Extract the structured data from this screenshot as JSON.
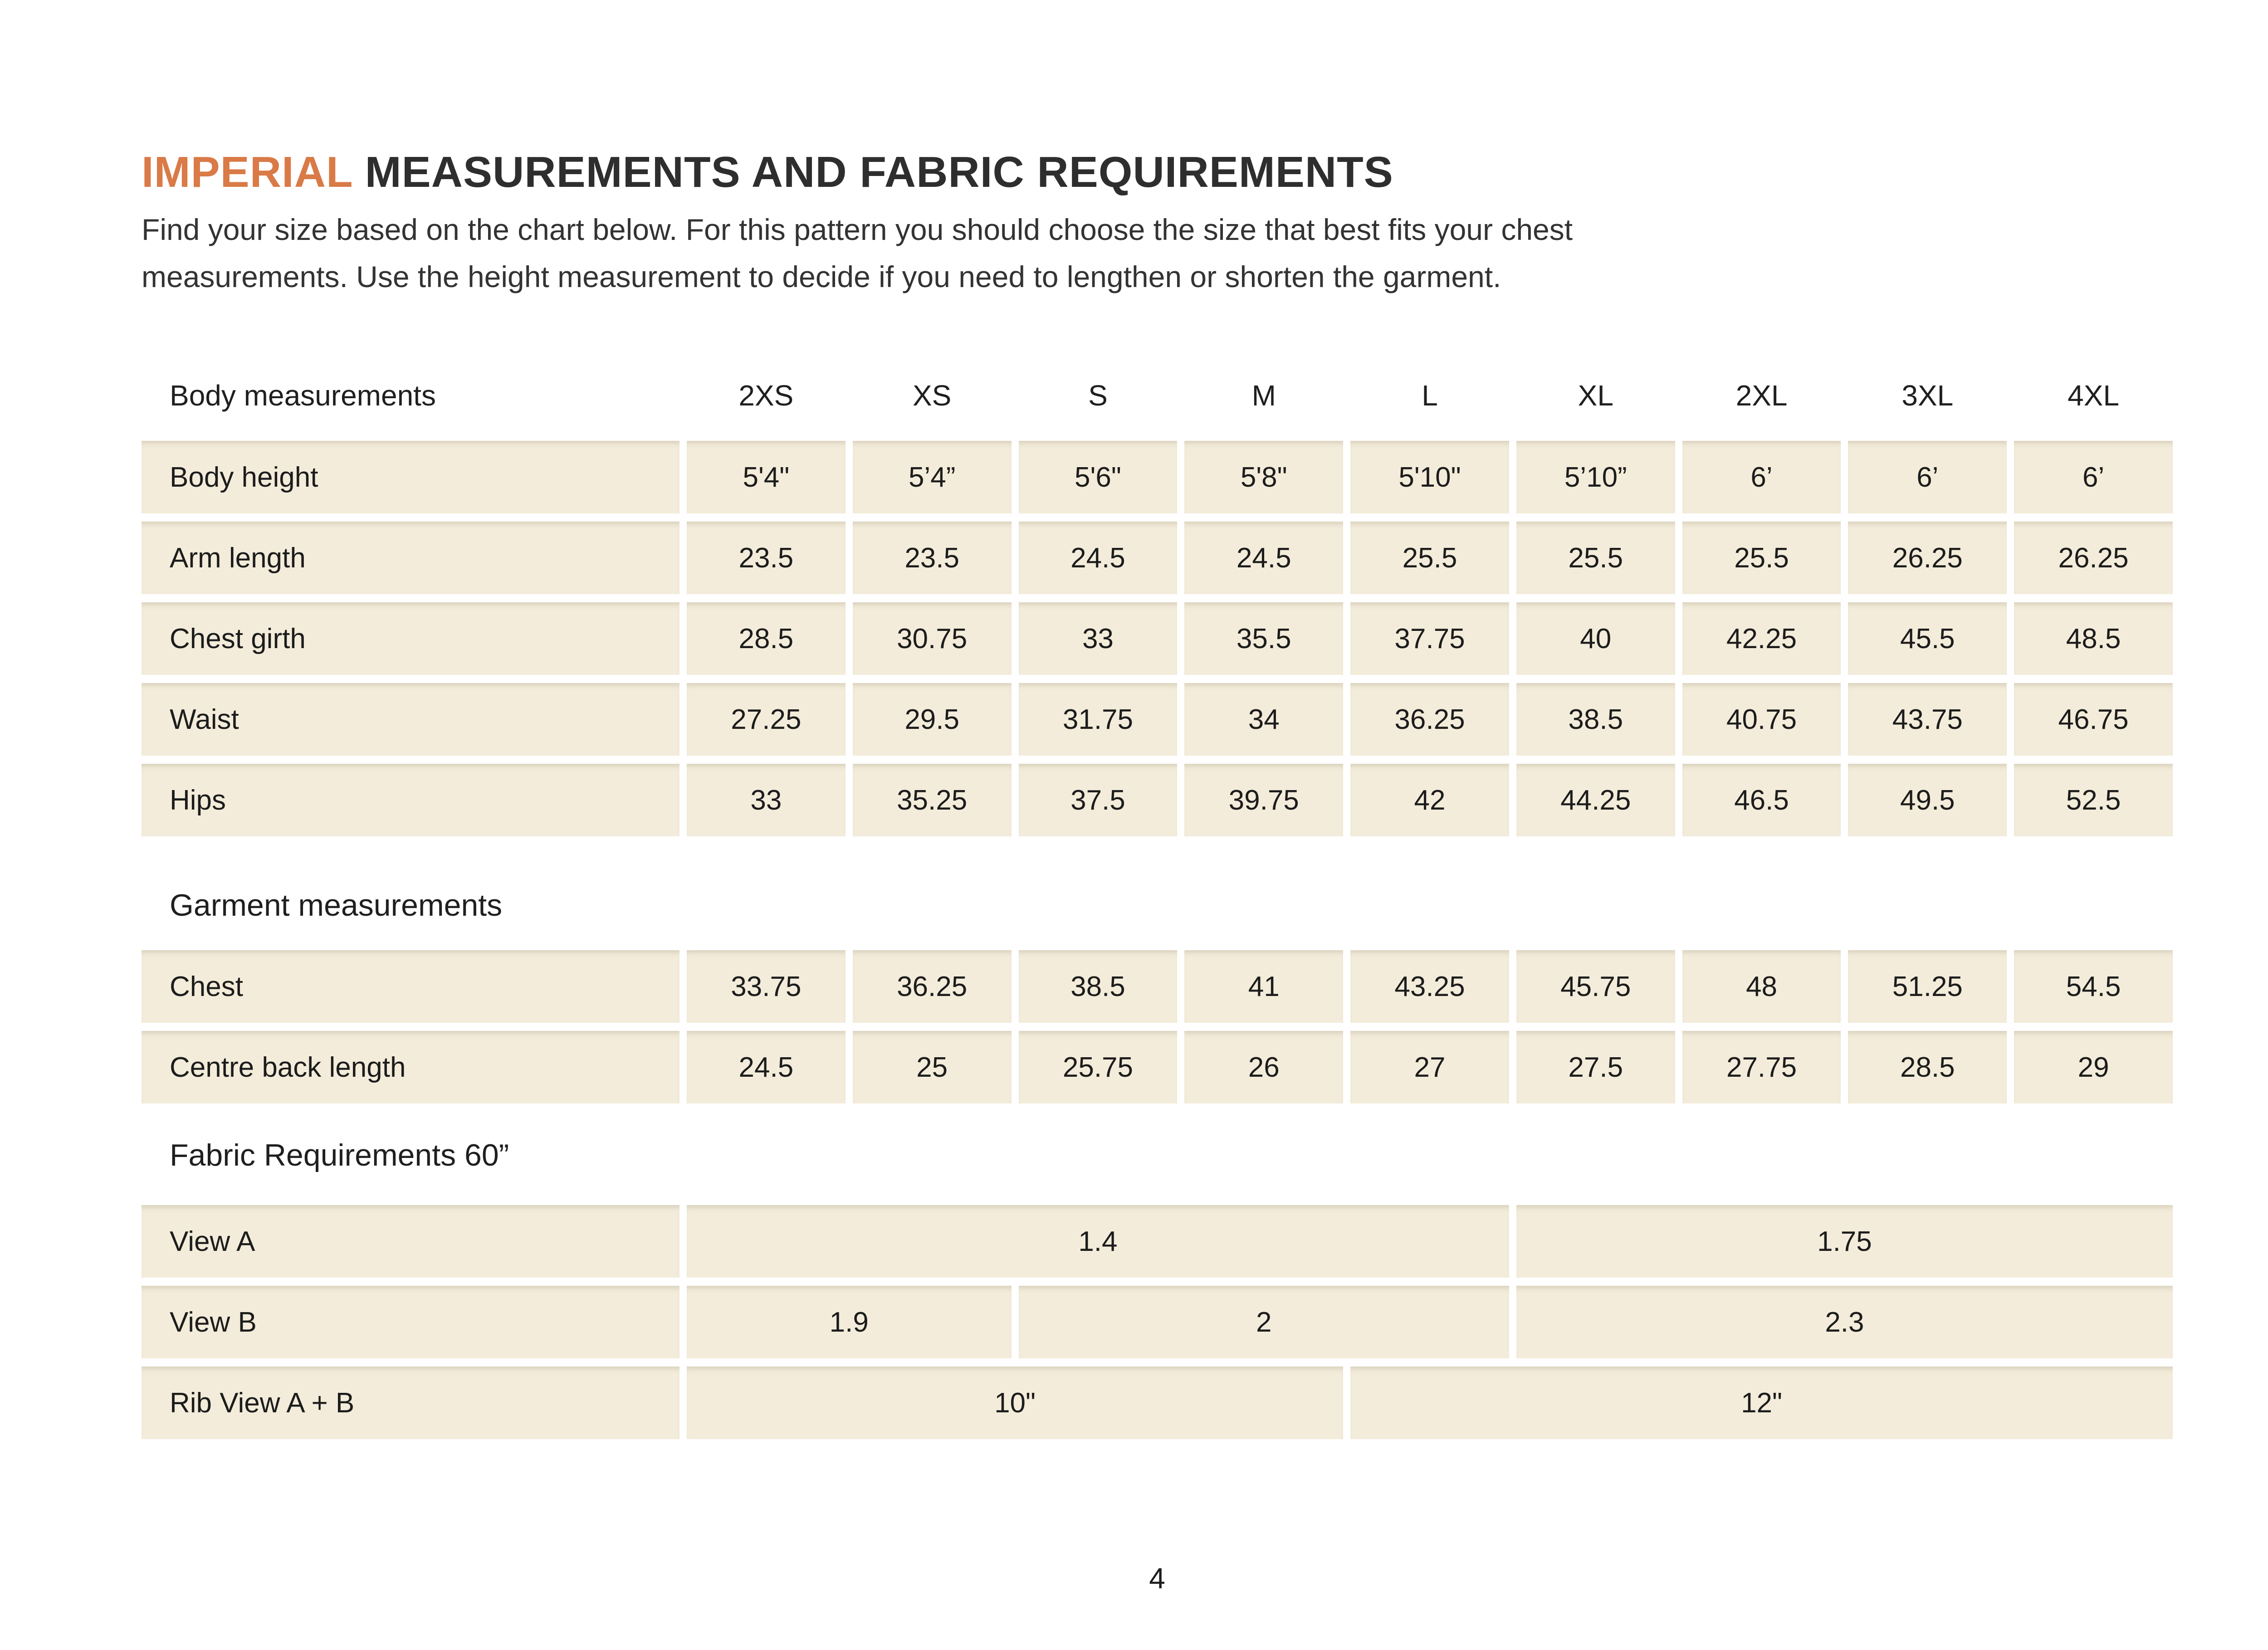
{
  "colors": {
    "accent_orange": "#d97a47",
    "cell_cream": "#f3ecda",
    "text_dark": "#1f1f1f",
    "page_background": "#ffffff"
  },
  "header": {
    "title_highlight": "IMPERIAL",
    "title_rest": " MEASUREMENTS AND FABRIC REQUIREMENTS",
    "intro_line1": "Find your size based on the chart below. For this pattern you should choose the size that best fits your chest",
    "intro_line2": "measurements. Use the height measurement to decide if you need to lengthen or shorten the garment."
  },
  "table": {
    "sizes_header_label": "Body measurements",
    "sizes": [
      "2XS",
      "XS",
      "S",
      "M",
      "L",
      "XL",
      "2XL",
      "3XL",
      "4XL"
    ],
    "body_rows": [
      {
        "label": "Body height",
        "values": [
          "5'4\"",
          "5’4”",
          "5'6\"",
          "5'8\"",
          "5'10\"",
          "5’10”",
          "6’",
          "6’",
          "6’"
        ]
      },
      {
        "label": "Arm length",
        "values": [
          "23.5",
          "23.5",
          "24.5",
          "24.5",
          "25.5",
          "25.5",
          "25.5",
          "26.25",
          "26.25"
        ]
      },
      {
        "label": "Chest girth",
        "values": [
          "28.5",
          "30.75",
          "33",
          "35.5",
          "37.75",
          "40",
          "42.25",
          "45.5",
          "48.5"
        ]
      },
      {
        "label": "Waist",
        "values": [
          "27.25",
          "29.5",
          "31.75",
          "34",
          "36.25",
          "38.5",
          "40.75",
          "43.75",
          "46.75"
        ]
      },
      {
        "label": "Hips",
        "values": [
          "33",
          "35.25",
          "37.5",
          "39.75",
          "42",
          "44.25",
          "46.5",
          "49.5",
          "52.5"
        ]
      }
    ],
    "garment_section_label": "Garment measurements",
    "garment_rows": [
      {
        "label": "Chest",
        "values": [
          "33.75",
          "36.25",
          "38.5",
          "41",
          "43.25",
          "45.75",
          "48",
          "51.25",
          "54.5"
        ]
      },
      {
        "label": "Centre back length",
        "values": [
          "24.5",
          "25",
          "25.75",
          "26",
          "27",
          "27.5",
          "27.75",
          "28.5",
          "29"
        ]
      }
    ],
    "fabric_section_label": "Fabric Requirements 60”",
    "fabric_rows": [
      {
        "label": "View A",
        "cells": [
          {
            "value": "1.4",
            "span": 5
          },
          {
            "value": "1.75",
            "span": 4
          }
        ]
      },
      {
        "label": "View B",
        "cells": [
          {
            "value": "1.9",
            "span": 2
          },
          {
            "value": "2",
            "span": 3
          },
          {
            "value": "2.3",
            "span": 4
          }
        ]
      },
      {
        "label": "Rib View A + B",
        "cells": [
          {
            "value": "10\"",
            "span": 4
          },
          {
            "value": "12\"",
            "span": 5
          }
        ]
      }
    ]
  },
  "page": {
    "number": "4"
  }
}
